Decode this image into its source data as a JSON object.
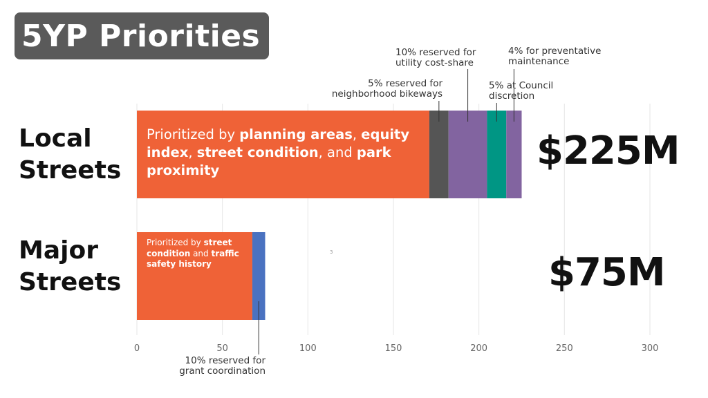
{
  "slide_title": "5YP Priorities",
  "tiny_mark": "3",
  "colors": {
    "orange": "#ef6237",
    "gray": "#555555",
    "purple": "#8264a0",
    "teal": "#009684",
    "blue": "#4a72c0",
    "grid": "#e6e6e6",
    "leader": "#333333"
  },
  "chart_data": {
    "type": "bar",
    "orientation": "horizontal",
    "stacked": true,
    "categories": [
      "Local Streets",
      "Major Streets"
    ],
    "totals": [
      "$225M",
      "$75M"
    ],
    "xlim": [
      0,
      300
    ],
    "x_ticks": [
      "0",
      "50",
      "100",
      "150",
      "200",
      "250",
      "300"
    ],
    "grid": true,
    "rows": [
      {
        "label_lines": [
          "Local",
          "Streets"
        ],
        "segments": [
          {
            "value": 171,
            "color": "#ef6237"
          },
          {
            "value": 11.25,
            "color": "#555555"
          },
          {
            "value": 22.5,
            "color": "#8264a0"
          },
          {
            "value": 11.25,
            "color": "#009684"
          },
          {
            "value": 9,
            "color": "#8264a0"
          }
        ]
      },
      {
        "label_lines": [
          "Major",
          "Streets"
        ],
        "segments": [
          {
            "value": 67.5,
            "color": "#ef6237"
          },
          {
            "value": 7.5,
            "color": "#4a72c0"
          }
        ]
      }
    ],
    "bar_text": {
      "local": [
        {
          "t": "Prioritized by ",
          "b": false
        },
        {
          "t": "planning areas",
          "b": true
        },
        {
          "t": ", ",
          "b": false
        },
        {
          "t": "equity index",
          "b": true
        },
        {
          "t": ", ",
          "b": false
        },
        {
          "t": "street condition",
          "b": true
        },
        {
          "t": ", and ",
          "b": false
        },
        {
          "t": "park proximity",
          "b": true
        }
      ],
      "major": [
        {
          "t": "Prioritized by ",
          "b": false
        },
        {
          "t": "street condition",
          "b": true
        },
        {
          "t": " and ",
          "b": false
        },
        {
          "t": "traffic safety history",
          "b": true
        }
      ]
    },
    "annotations": {
      "bikeways": [
        "5% reserved for",
        "neighborhood bikeways"
      ],
      "utility": [
        "10% reserved for",
        "utility cost-share"
      ],
      "preventative": [
        "4% for preventative",
        "maintenance"
      ],
      "council": [
        "5% at Council",
        "discretion"
      ],
      "grant": [
        "10% reserved for",
        "grant coordination"
      ]
    }
  }
}
